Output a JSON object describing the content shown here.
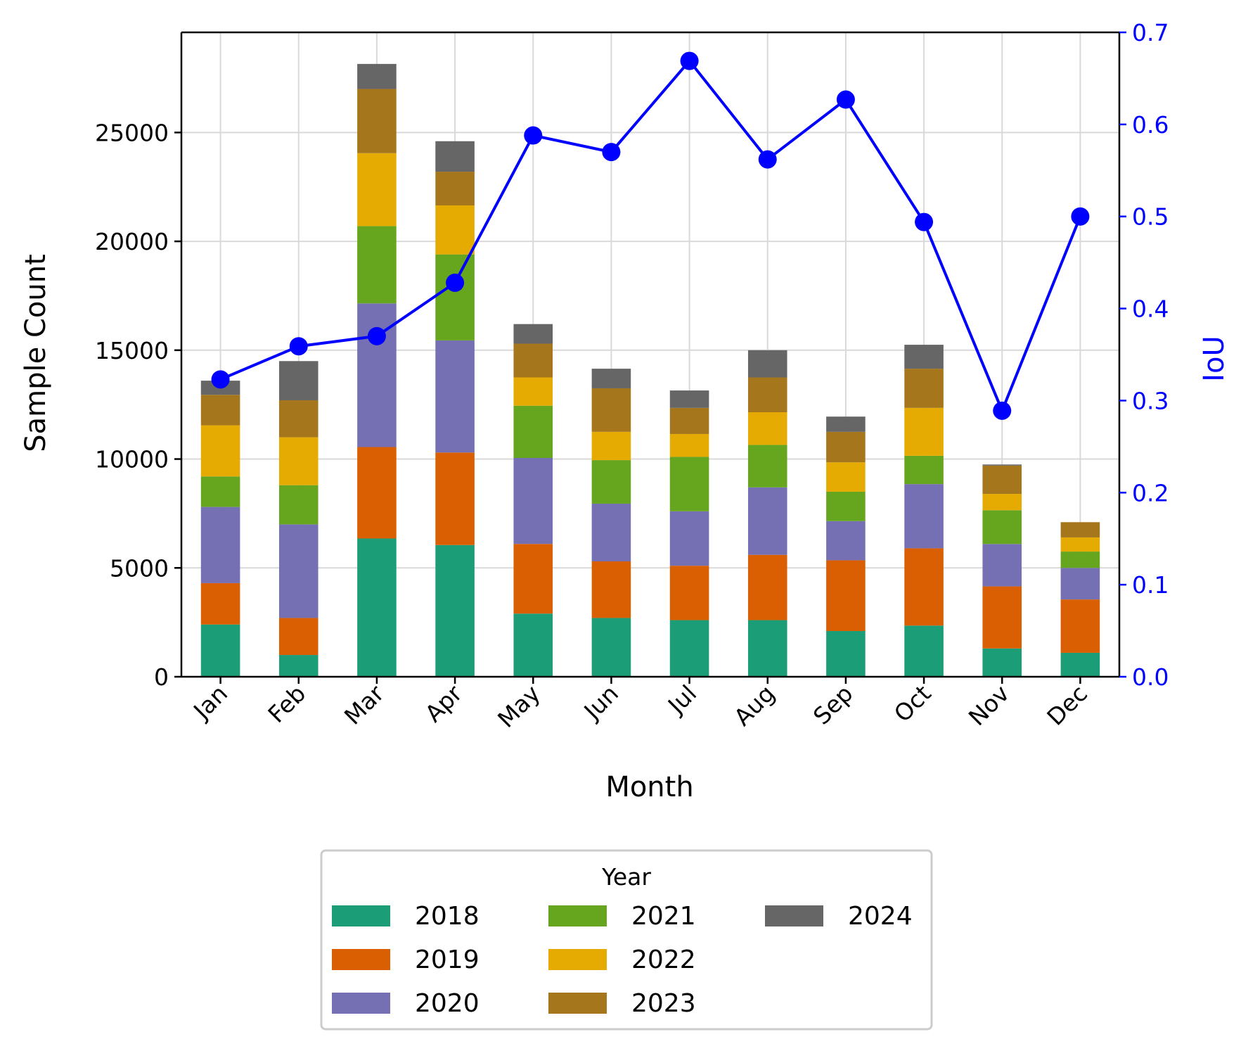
{
  "chart_data": {
    "type": "bar",
    "stacked": true,
    "categories": [
      "Jan",
      "Feb",
      "Mar",
      "Apr",
      "May",
      "Jun",
      "Jul",
      "Aug",
      "Sep",
      "Oct",
      "Nov",
      "Dec"
    ],
    "xlabel": "Month",
    "ylabel": "Sample Count",
    "y2label": "IoU",
    "ylim": [
      0,
      29600
    ],
    "y2lim": [
      0,
      0.7
    ],
    "yticks": [
      0,
      5000,
      10000,
      15000,
      20000,
      25000
    ],
    "y2ticks": [
      "0.0",
      "0.1",
      "0.2",
      "0.3",
      "0.4",
      "0.5",
      "0.6",
      "0.7"
    ],
    "grid": true,
    "legend": {
      "title": "Year",
      "placement": "bottom-center outside",
      "columns": 3
    },
    "series": [
      {
        "name": "2018",
        "color": "#1b9e77",
        "values": [
          2400,
          1000,
          6350,
          6050,
          2900,
          2700,
          2600,
          2600,
          2100,
          2350,
          1300,
          1100
        ]
      },
      {
        "name": "2019",
        "color": "#d95f02",
        "values": [
          1900,
          1700,
          4200,
          4250,
          3200,
          2600,
          2500,
          3000,
          3250,
          3550,
          2850,
          2450
        ]
      },
      {
        "name": "2020",
        "color": "#7570b3",
        "values": [
          3500,
          4300,
          6600,
          5150,
          3950,
          2650,
          2500,
          3100,
          1800,
          2950,
          1950,
          1450
        ]
      },
      {
        "name": "2021",
        "color": "#66a61e",
        "values": [
          1400,
          1800,
          3550,
          3950,
          2400,
          2000,
          2500,
          1950,
          1350,
          1300,
          1550,
          750
        ]
      },
      {
        "name": "2022",
        "color": "#e6ab02",
        "values": [
          2350,
          2200,
          3350,
          2250,
          1300,
          1300,
          1050,
          1500,
          1350,
          2200,
          750,
          650
        ]
      },
      {
        "name": "2023",
        "color": "#a6761d",
        "values": [
          1400,
          1700,
          2950,
          1550,
          1550,
          2000,
          1200,
          1600,
          1400,
          1800,
          1300,
          700
        ]
      },
      {
        "name": "2024",
        "color": "#666666",
        "values": [
          650,
          1800,
          1150,
          1400,
          900,
          900,
          800,
          1250,
          700,
          1100,
          50,
          0
        ]
      }
    ],
    "line_series": {
      "name": "IoU",
      "axis": "right",
      "color": "#0000ff",
      "values": [
        0.323,
        0.359,
        0.37,
        0.428,
        0.588,
        0.57,
        0.669,
        0.562,
        0.627,
        0.494,
        0.289,
        0.5
      ]
    }
  }
}
